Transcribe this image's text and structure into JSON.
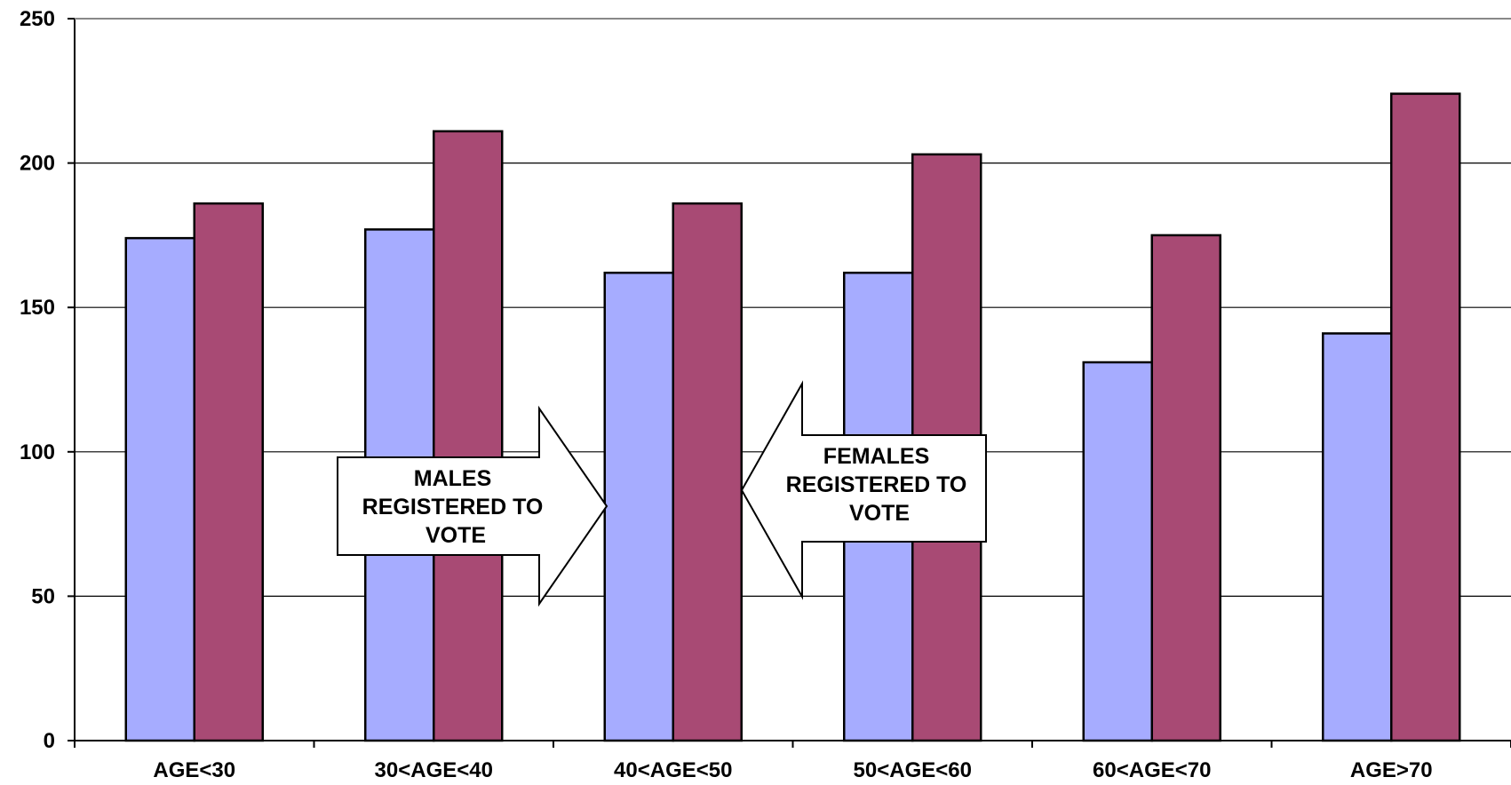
{
  "chart_data": {
    "type": "bar",
    "categories": [
      "AGE<30",
      "30<AGE<40",
      "40<AGE<50",
      "50<AGE<60",
      "60<AGE<70",
      "AGE>70"
    ],
    "series": [
      {
        "values": [
          174,
          177,
          162,
          162,
          131,
          141
        ],
        "color": "#A6ACFF"
      },
      {
        "values": [
          186,
          211,
          186,
          203,
          175,
          224
        ],
        "color": "#A84A74"
      }
    ],
    "ylim": [
      0,
      250
    ],
    "yticks": [
      0,
      50,
      100,
      150,
      200,
      250
    ],
    "grid": true,
    "annotations": [
      {
        "lines": [
          "MALES",
          "REGISTERED TO",
          "VOTE"
        ],
        "arrow": "right"
      },
      {
        "lines": [
          "FEMALES",
          "REGISTERED TO",
          "VOTE"
        ],
        "arrow": "left"
      }
    ]
  }
}
